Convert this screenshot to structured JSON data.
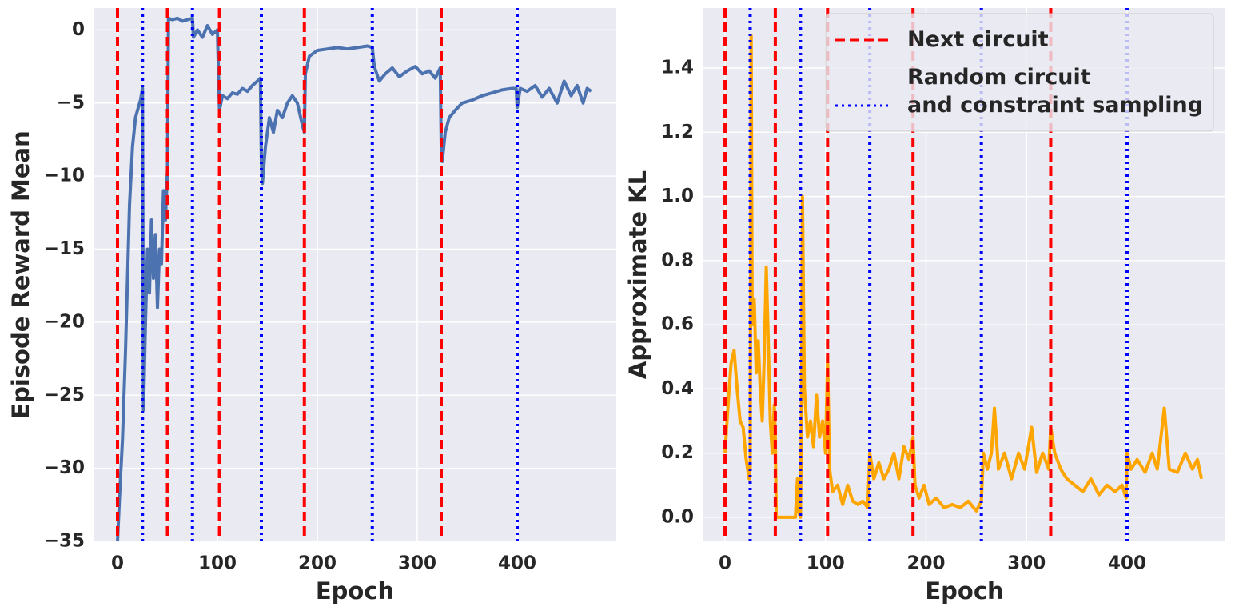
{
  "chart_data": [
    {
      "type": "line",
      "xlabel": "Epoch",
      "ylabel": "Episode Reward Mean",
      "xlim": [
        -23.2,
        498.4
      ],
      "ylim": [
        -35,
        1.5
      ],
      "xticks": [
        0,
        100,
        200,
        300,
        400
      ],
      "yticks": [
        {
          "value": -35,
          "label": "−35"
        },
        {
          "value": -30,
          "label": "−30"
        },
        {
          "value": -25,
          "label": "−25"
        },
        {
          "value": -20,
          "label": "−20"
        },
        {
          "value": -15,
          "label": "−15"
        },
        {
          "value": -10,
          "label": "−10"
        },
        {
          "value": -5,
          "label": "−5"
        },
        0
      ],
      "grid": true,
      "x": [
        0,
        2,
        5,
        8,
        10,
        12,
        15,
        18,
        20,
        23,
        25,
        26,
        28,
        30,
        32,
        34,
        36,
        38,
        40,
        42,
        44,
        46,
        48,
        50,
        51,
        55,
        60,
        65,
        70,
        75,
        76,
        80,
        85,
        90,
        95,
        100,
        102,
        105,
        110,
        115,
        120,
        125,
        130,
        135,
        140,
        143,
        144,
        145,
        148,
        152,
        156,
        160,
        165,
        170,
        175,
        180,
        185,
        187,
        188,
        192,
        200,
        210,
        220,
        230,
        240,
        250,
        255,
        257,
        262,
        268,
        275,
        282,
        290,
        298,
        305,
        312,
        318,
        323,
        324,
        325,
        328,
        332,
        338,
        345,
        355,
        365,
        375,
        385,
        395,
        399,
        400,
        403,
        410,
        418,
        425,
        432,
        440,
        447,
        454,
        460,
        466,
        470,
        474
      ],
      "series": [
        {
          "color": "#4c72b0",
          "values": [
            -35,
            -32,
            -28,
            -22,
            -17,
            -12,
            -8,
            -6,
            -5.5,
            -4.8,
            -4,
            -26,
            -20,
            -15,
            -18,
            -13,
            -17,
            -14,
            -19,
            -15,
            -16,
            -11,
            -13,
            -9.5,
            0.8,
            0.7,
            0.8,
            0.6,
            0.7,
            0.8,
            -0.5,
            0,
            -0.5,
            0.3,
            -0.3,
            0,
            -5.5,
            -4.5,
            -4.7,
            -4.3,
            -4.4,
            -4,
            -4.2,
            -3.8,
            -3.5,
            -3.3,
            -9,
            -10.5,
            -8,
            -6,
            -7,
            -5.5,
            -6,
            -5,
            -4.5,
            -5,
            -6.5,
            -7,
            -3,
            -1.8,
            -1.4,
            -1.3,
            -1.2,
            -1.3,
            -1.2,
            -1.1,
            -1.2,
            -2.5,
            -3.5,
            -3,
            -2.6,
            -3.2,
            -2.8,
            -2.5,
            -3,
            -2.8,
            -3.3,
            -2.6,
            -8,
            -9,
            -7,
            -6,
            -5.5,
            -5,
            -4.8,
            -4.5,
            -4.3,
            -4.1,
            -4,
            -4,
            -5.3,
            -4,
            -4.2,
            -3.8,
            -4.6,
            -4,
            -5,
            -3.5,
            -4.5,
            -3.8,
            -5,
            -4,
            -4.2
          ]
        }
      ],
      "vlines": [
        {
          "color": "#ff0000",
          "style": "dashed",
          "x": [
            0,
            50,
            102,
            187,
            324
          ]
        },
        {
          "color": "#0000ff",
          "style": "dotted",
          "x": [
            25,
            75,
            144,
            255,
            400
          ]
        }
      ]
    },
    {
      "type": "line",
      "xlabel": "Epoch",
      "ylabel": "Approximate KL",
      "xlim": [
        -21.5,
        497.8
      ],
      "ylim": [
        -0.075,
        1.587
      ],
      "xticks": [
        0,
        100,
        200,
        300,
        400
      ],
      "yticks": [
        {
          "value": 0,
          "label": "0.0"
        },
        0.2,
        0.4,
        0.6,
        0.8,
        {
          "value": 1,
          "label": "1.0"
        },
        1.2,
        1.4
      ],
      "grid": true,
      "legend": "upper right",
      "x": [
        0,
        3,
        6,
        9,
        12,
        15,
        18,
        21,
        24,
        25,
        26,
        27,
        29,
        31,
        33,
        35,
        37,
        39,
        41,
        43,
        45,
        47,
        49,
        50,
        51,
        55,
        60,
        65,
        70,
        72,
        73,
        75,
        76,
        77,
        79,
        82,
        85,
        88,
        91,
        94,
        97,
        100,
        102,
        104,
        107,
        112,
        117,
        122,
        127,
        132,
        137,
        142,
        144,
        148,
        153,
        158,
        163,
        168,
        173,
        178,
        183,
        187,
        189,
        193,
        198,
        203,
        210,
        218,
        226,
        234,
        242,
        250,
        255,
        257,
        261,
        265,
        268,
        272,
        278,
        285,
        292,
        298,
        305,
        310,
        316,
        322,
        324,
        328,
        334,
        340,
        348,
        356,
        364,
        372,
        380,
        388,
        395,
        399,
        400,
        404,
        410,
        418,
        425,
        430,
        437,
        442,
        450,
        458,
        465,
        470,
        474
      ],
      "series": [
        {
          "color": "#ffa500",
          "values": [
            0.2,
            0.35,
            0.48,
            0.52,
            0.4,
            0.3,
            0.28,
            0.18,
            0.12,
            0.15,
            1.5,
            0.6,
            0.68,
            0.45,
            0.55,
            0.4,
            0.3,
            0.5,
            0.78,
            0.55,
            0.3,
            0.2,
            0.35,
            0.25,
            0,
            0,
            0,
            0,
            0,
            0.12,
            0.02,
            0,
            0.3,
            1.0,
            0.4,
            0.25,
            0.3,
            0.22,
            0.38,
            0.25,
            0.3,
            0.2,
            0.5,
            0.15,
            0.08,
            0.1,
            0.04,
            0.1,
            0.05,
            0.04,
            0.05,
            0.03,
            0.2,
            0.12,
            0.17,
            0.12,
            0.15,
            0.2,
            0.12,
            0.22,
            0.18,
            0.25,
            0.1,
            0.06,
            0.1,
            0.04,
            0.06,
            0.03,
            0.04,
            0.03,
            0.05,
            0.02,
            0.05,
            0.2,
            0.15,
            0.2,
            0.34,
            0.15,
            0.2,
            0.12,
            0.2,
            0.15,
            0.28,
            0.14,
            0.2,
            0.15,
            0.28,
            0.2,
            0.15,
            0.12,
            0.1,
            0.08,
            0.12,
            0.07,
            0.1,
            0.08,
            0.1,
            0.06,
            0.2,
            0.15,
            0.18,
            0.14,
            0.2,
            0.15,
            0.34,
            0.15,
            0.14,
            0.2,
            0.15,
            0.18,
            0.12
          ]
        }
      ],
      "vlines": [
        {
          "name": "Next circuit",
          "color": "#ff0000",
          "style": "dashed",
          "x": [
            0,
            50,
            102,
            187,
            324
          ]
        },
        {
          "name": "Random circuit\nand constraint sampling",
          "color": "#0000ff",
          "style": "dotted",
          "x": [
            25,
            75,
            144,
            255,
            400
          ]
        }
      ]
    }
  ]
}
